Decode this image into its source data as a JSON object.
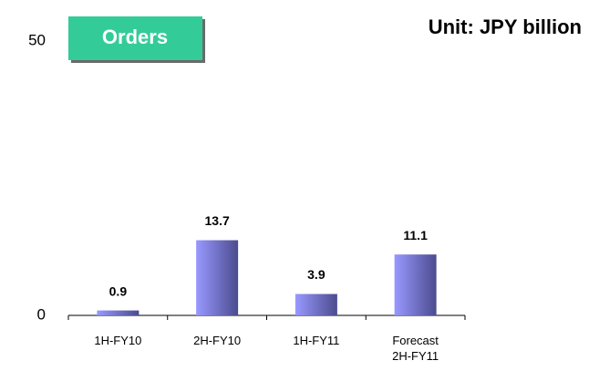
{
  "chart_data": {
    "type": "bar",
    "title": "Orders",
    "annotation": "Unit: JPY billion",
    "categories": [
      "1H-FY10",
      "2H-FY10",
      "1H-FY11",
      "Forecast 2H-FY11"
    ],
    "values": [
      0.9,
      13.7,
      3.9,
      11.1
    ],
    "color": "#9999ff",
    "ylim": [
      0,
      50
    ],
    "yticks": [
      0,
      50
    ],
    "grid": false
  }
}
